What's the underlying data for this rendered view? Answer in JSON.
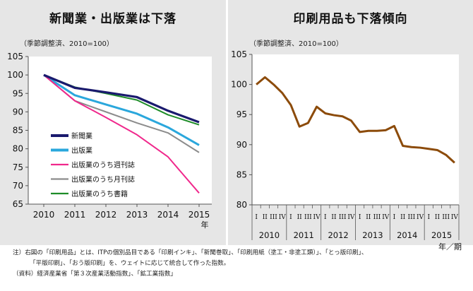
{
  "left": {
    "title": "新聞業・出版業は下落",
    "unit": "（季節調整済、2010=100）",
    "year_suffix": "年"
  },
  "right": {
    "title": "印刷用品も下落傾向",
    "unit": "（季節調整済、2010=100）",
    "period_suffix": "年／期"
  },
  "note": {
    "line1": "注）右図の「印刷用品」とは、ITPの個別品目である「印刷インキ」、「新聞巻取」、「印刷用紙（塗工・非塗工類）」、「とっ版印刷」、",
    "line2": "「平版印刷」、「おう版印刷」を、ウェイトに応じて統合して作った指数。",
    "line3": "（資料）経済産業省「第３次産業活動指数」、「鉱工業指数」"
  },
  "colors": {
    "newspaper": "#1a1a6e",
    "publishing": "#2aa7dc",
    "weekly": "#f0288c",
    "monthly": "#8c8c8c",
    "books": "#1e8c28",
    "printing": "#8c4b0a"
  },
  "chart_data": [
    {
      "type": "line",
      "categories": [
        "2010",
        "2011",
        "2012",
        "2013",
        "2014",
        "2015"
      ],
      "ylim": [
        65,
        105
      ],
      "yticks": [
        65,
        70,
        75,
        80,
        85,
        90,
        95,
        100,
        105
      ],
      "grid": false,
      "legend_position": "bottom-left",
      "series": [
        {
          "name": "新聞業",
          "color_key": "newspaper",
          "values": [
            100,
            96.5,
            95.3,
            94.0,
            90.3,
            87.2
          ]
        },
        {
          "name": "出版業",
          "color_key": "publishing",
          "values": [
            100,
            94.5,
            92.0,
            89.5,
            85.8,
            81.0
          ]
        },
        {
          "name": "出版業のうち週刊誌",
          "color_key": "weekly",
          "values": [
            100,
            93.0,
            88.5,
            83.8,
            77.8,
            68.0
          ]
        },
        {
          "name": "出版業のうち月刊誌",
          "color_key": "monthly",
          "values": [
            100,
            93.0,
            90.0,
            87.0,
            84.3,
            79.0
          ]
        },
        {
          "name": "出版業のうち書籍",
          "color_key": "books",
          "values": [
            100,
            96.7,
            95.0,
            93.2,
            89.2,
            86.5
          ]
        }
      ]
    },
    {
      "type": "line",
      "quarter_labels": [
        "I",
        "II",
        "III",
        "IV"
      ],
      "years": [
        "2010",
        "2011",
        "2012",
        "2013",
        "2014",
        "2015"
      ],
      "ylim": [
        80,
        105
      ],
      "yticks": [
        80,
        85,
        90,
        95,
        100,
        105
      ],
      "grid": false,
      "series": [
        {
          "name": "印刷用品",
          "color_key": "printing",
          "values": [
            100.0,
            101.2,
            100.0,
            98.6,
            96.6,
            93.0,
            93.6,
            96.3,
            95.2,
            94.9,
            94.7,
            94.0,
            92.1,
            92.3,
            92.3,
            92.4,
            93.1,
            89.8,
            89.6,
            89.5,
            89.3,
            89.1,
            88.3,
            87.0
          ]
        }
      ]
    }
  ]
}
